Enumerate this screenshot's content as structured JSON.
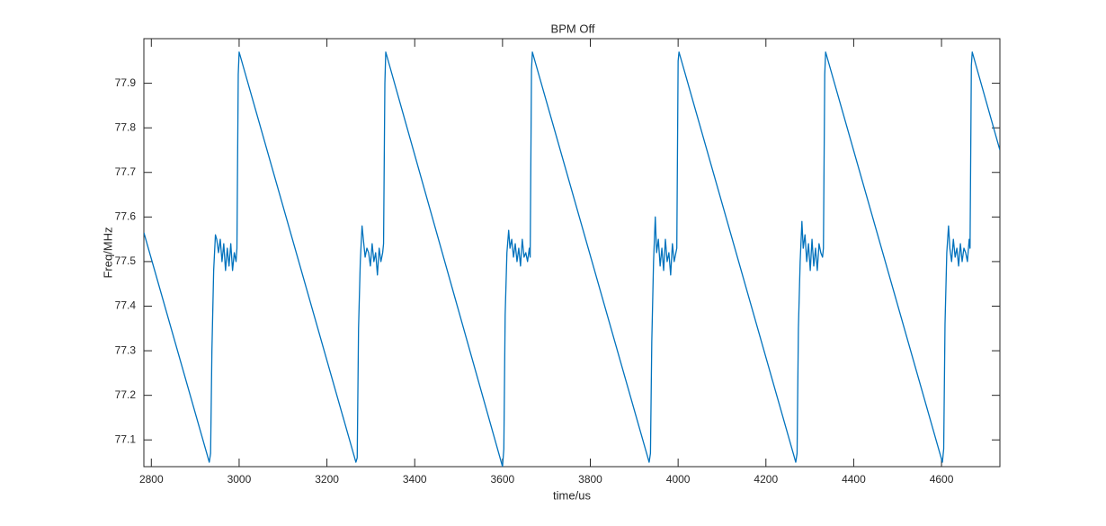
{
  "chart_data": {
    "type": "line",
    "title": "BPM Off",
    "x_label": "time/us",
    "y_label": "Freq/MHz",
    "color": "#0072bd",
    "box": true,
    "xlim": [
      2783,
      4733
    ],
    "xticks": [
      2800,
      3000,
      3200,
      3400,
      3600,
      3800,
      4000,
      4200,
      4400,
      4600
    ],
    "ylim": [
      77.04,
      78.0
    ],
    "yticks": [
      77.1,
      77.2,
      77.3,
      77.4,
      77.5,
      77.6,
      77.7,
      77.8,
      77.9
    ],
    "x": [
      2783,
      2932,
      2935,
      2938,
      2942,
      2946,
      2949,
      2953,
      2957,
      2961,
      2965,
      2969,
      2973,
      2977,
      2981,
      2985,
      2989,
      2993,
      2995,
      2998,
      3000,
      3266,
      3269,
      3272,
      3276,
      3280,
      3283,
      3287,
      3291,
      3295,
      3299,
      3303,
      3307,
      3311,
      3315,
      3319,
      3323,
      3327,
      3329,
      3332,
      3334,
      3600,
      3603,
      3606,
      3610,
      3614,
      3617,
      3621,
      3625,
      3629,
      3633,
      3637,
      3641,
      3645,
      3649,
      3653,
      3657,
      3661,
      3663,
      3666,
      3668,
      3934,
      3937,
      3940,
      3944,
      3948,
      3951,
      3955,
      3959,
      3963,
      3967,
      3971,
      3975,
      3979,
      3983,
      3987,
      3991,
      3995,
      3997,
      4000,
      4002,
      4268,
      4271,
      4274,
      4278,
      4282,
      4285,
      4289,
      4293,
      4297,
      4301,
      4305,
      4309,
      4313,
      4317,
      4321,
      4325,
      4329,
      4331,
      4334,
      4336,
      4602,
      4605,
      4608,
      4612,
      4616,
      4619,
      4623,
      4627,
      4631,
      4635,
      4639,
      4643,
      4647,
      4651,
      4655,
      4659,
      4663,
      4665,
      4668,
      4670,
      4733
    ],
    "values": [
      77.565,
      77.05,
      77.07,
      77.3,
      77.48,
      77.56,
      77.55,
      77.52,
      77.55,
      77.5,
      77.54,
      77.48,
      77.53,
      77.49,
      77.54,
      77.48,
      77.52,
      77.5,
      77.53,
      77.92,
      77.97,
      77.05,
      77.06,
      77.35,
      77.5,
      77.58,
      77.55,
      77.51,
      77.53,
      77.52,
      77.49,
      77.54,
      77.5,
      77.52,
      77.47,
      77.53,
      77.5,
      77.52,
      77.54,
      77.9,
      77.97,
      77.04,
      77.08,
      77.38,
      77.52,
      77.57,
      77.53,
      77.55,
      77.51,
      77.54,
      77.5,
      77.53,
      77.49,
      77.55,
      77.51,
      77.52,
      77.5,
      77.53,
      77.51,
      77.93,
      77.97,
      77.05,
      77.07,
      77.32,
      77.5,
      77.6,
      77.52,
      77.55,
      77.49,
      77.53,
      77.48,
      77.55,
      77.5,
      77.52,
      77.47,
      77.54,
      77.5,
      77.52,
      77.53,
      77.95,
      77.97,
      77.05,
      77.07,
      77.35,
      77.5,
      77.59,
      77.53,
      77.56,
      77.5,
      77.54,
      77.48,
      77.55,
      77.49,
      77.53,
      77.48,
      77.54,
      77.52,
      77.51,
      77.53,
      77.92,
      77.97,
      77.05,
      77.08,
      77.36,
      77.52,
      77.58,
      77.53,
      77.5,
      77.55,
      77.51,
      77.53,
      77.49,
      77.54,
      77.5,
      77.53,
      77.52,
      77.5,
      77.55,
      77.53,
      77.94,
      77.97,
      77.75
    ]
  }
}
